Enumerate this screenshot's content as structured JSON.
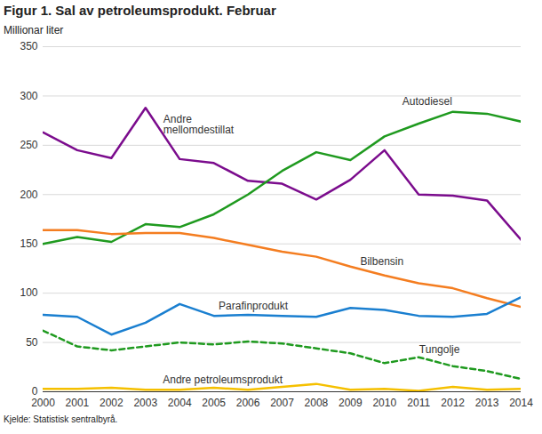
{
  "chart_data": {
    "type": "line",
    "title": "Figur 1. Sal av petroleumsprodukt. Februar",
    "y_label": "Millionar liter",
    "source": "Kjelde: Statistisk sentralbyrå.",
    "x": [
      2000,
      2001,
      2002,
      2003,
      2004,
      2005,
      2006,
      2007,
      2008,
      2009,
      2010,
      2011,
      2012,
      2013,
      2014
    ],
    "xlim": [
      2000,
      2014
    ],
    "xticks": [
      2000,
      2001,
      2002,
      2003,
      2004,
      2005,
      2006,
      2007,
      2008,
      2009,
      2010,
      2011,
      2012,
      2013,
      2014
    ],
    "ylim": [
      0,
      350
    ],
    "yticks": [
      0,
      50,
      100,
      150,
      200,
      250,
      300,
      350
    ],
    "grid": true,
    "series": [
      {
        "name": "Andre\nmellomdestillat",
        "color": "#7b0c8d",
        "line_style": "solid",
        "values": [
          263,
          245,
          237,
          288,
          236,
          232,
          214,
          211,
          195,
          215,
          245,
          200,
          199,
          194,
          154
        ]
      },
      {
        "name": "Autodiesel",
        "color": "#1f9a1f",
        "line_style": "solid",
        "values": [
          150,
          157,
          152,
          170,
          167,
          180,
          200,
          224,
          243,
          235,
          259,
          272,
          284,
          282,
          274
        ]
      },
      {
        "name": "Bilbensin",
        "color": "#f47d20",
        "line_style": "solid",
        "values": [
          164,
          164,
          160,
          161,
          161,
          156,
          149,
          142,
          137,
          127,
          118,
          110,
          105,
          95,
          86
        ]
      },
      {
        "name": "Parafinprodukt",
        "color": "#1a7fd0",
        "line_style": "solid",
        "values": [
          78,
          76,
          58,
          70,
          89,
          77,
          78,
          77,
          76,
          85,
          83,
          77,
          76,
          79,
          96
        ]
      },
      {
        "name": "Tungolje",
        "color": "#1f9a1f",
        "line_style": "dashed",
        "values": [
          62,
          46,
          42,
          46,
          50,
          48,
          51,
          49,
          44,
          39,
          29,
          35,
          26,
          21,
          13
        ]
      },
      {
        "name": "Andre petroleumsprodukt",
        "color": "#f5c000",
        "line_style": "solid",
        "values": [
          3,
          3,
          4,
          2,
          2,
          4,
          2,
          5,
          8,
          2,
          3,
          1,
          5,
          2,
          3
        ]
      }
    ]
  }
}
